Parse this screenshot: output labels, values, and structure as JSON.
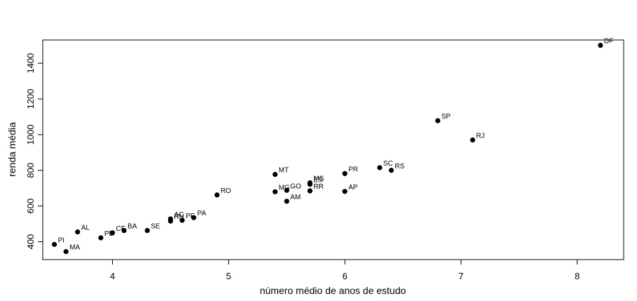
{
  "chart_data": {
    "type": "scatter",
    "xlabel": "número médio de anos de estudo",
    "ylabel": "renda média",
    "xlim": [
      3.4,
      8.4
    ],
    "ylim": [
      300,
      1530
    ],
    "x_ticks": [
      4,
      5,
      6,
      7,
      8
    ],
    "y_ticks": [
      400,
      600,
      800,
      1000,
      1200,
      1400
    ],
    "grid": false,
    "marker_color": "#000000",
    "points": [
      {
        "label": "PI",
        "x": 3.5,
        "y": 385
      },
      {
        "label": "MA",
        "x": 3.6,
        "y": 345
      },
      {
        "label": "AL",
        "x": 3.7,
        "y": 455
      },
      {
        "label": "PB",
        "x": 3.9,
        "y": 422
      },
      {
        "label": "CE",
        "x": 4.0,
        "y": 450
      },
      {
        "label": "BA",
        "x": 4.1,
        "y": 463
      },
      {
        "label": "SE",
        "x": 4.3,
        "y": 463
      },
      {
        "label": "AC",
        "x": 4.5,
        "y": 528
      },
      {
        "label": "RN",
        "x": 4.5,
        "y": 516
      },
      {
        "label": "PE",
        "x": 4.6,
        "y": 520
      },
      {
        "label": "PA",
        "x": 4.7,
        "y": 535
      },
      {
        "label": "RO",
        "x": 4.9,
        "y": 662
      },
      {
        "label": "MT",
        "x": 5.4,
        "y": 777
      },
      {
        "label": "MG",
        "x": 5.4,
        "y": 680
      },
      {
        "label": "GO",
        "x": 5.5,
        "y": 688
      },
      {
        "label": "AM",
        "x": 5.5,
        "y": 627
      },
      {
        "label": "MS",
        "x": 5.7,
        "y": 730
      },
      {
        "label": "ES",
        "x": 5.7,
        "y": 722
      },
      {
        "label": "RR",
        "x": 5.7,
        "y": 685
      },
      {
        "label": "PR",
        "x": 6.0,
        "y": 782
      },
      {
        "label": "AP",
        "x": 6.0,
        "y": 682
      },
      {
        "label": "SC",
        "x": 6.3,
        "y": 815
      },
      {
        "label": "RS",
        "x": 6.4,
        "y": 800
      },
      {
        "label": "SP",
        "x": 6.8,
        "y": 1078
      },
      {
        "label": "RJ",
        "x": 7.1,
        "y": 970
      },
      {
        "label": "DF",
        "x": 8.2,
        "y": 1500
      }
    ]
  }
}
